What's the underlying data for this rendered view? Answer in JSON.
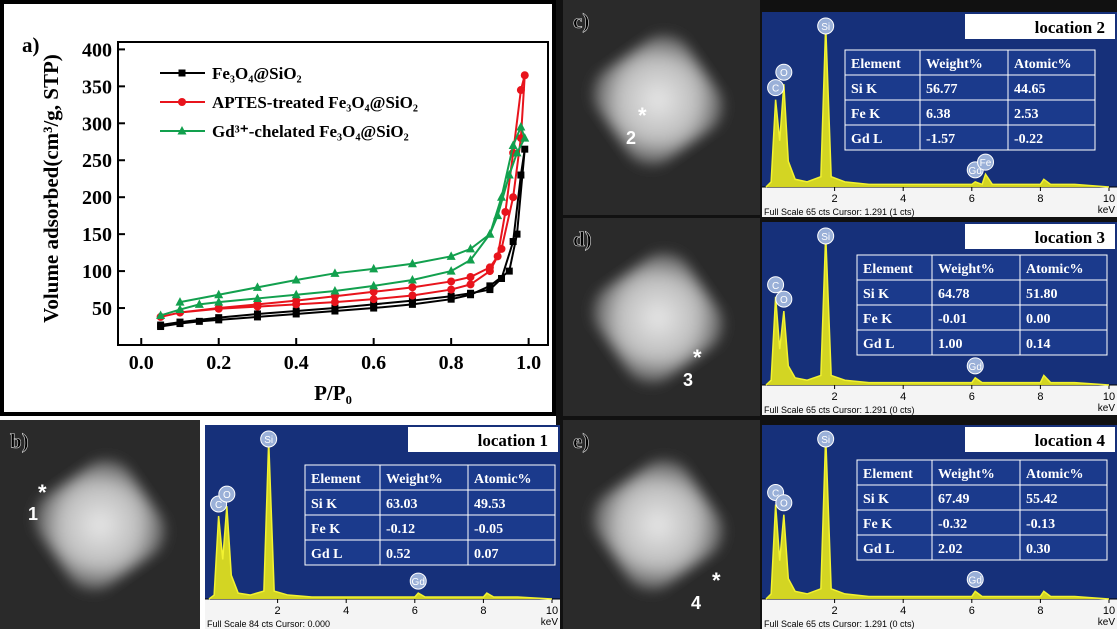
{
  "chart_data": [
    {
      "type": "line",
      "panel_label": "a)",
      "xlabel": "P/P₀",
      "ylabel": "Volume adsorbed(cm³/g, STP)",
      "xlim": [
        -0.06,
        1.05
      ],
      "xticks": [
        {
          "value": 0,
          "label": "0.0"
        },
        {
          "value": 0.2,
          "label": "0.2"
        },
        {
          "value": 0.4,
          "label": "0.4"
        },
        {
          "value": 0.6,
          "label": "0.6"
        },
        {
          "value": 0.8,
          "label": "0.8"
        },
        {
          "value": 1,
          "label": "1.0"
        }
      ],
      "ylim": [
        0,
        410
      ],
      "yticks": [
        50,
        100,
        150,
        200,
        250,
        300,
        350,
        400
      ],
      "series": [
        {
          "name": "Fe₃O₄@SiO₂",
          "color": "#000000",
          "marker": "square",
          "x": [
            0.05,
            0.1,
            0.15,
            0.2,
            0.3,
            0.4,
            0.5,
            0.6,
            0.7,
            0.8,
            0.85,
            0.9,
            0.95,
            0.97,
            0.99,
            0.98,
            0.96,
            0.93,
            0.9,
            0.85,
            0.8,
            0.7,
            0.6,
            0.5,
            0.4,
            0.3,
            0.2,
            0.1,
            0.05
          ],
          "values": [
            25,
            29,
            32,
            34,
            38,
            42,
            46,
            50,
            55,
            62,
            68,
            80,
            100,
            150,
            265,
            230,
            140,
            90,
            75,
            70,
            66,
            60,
            55,
            50,
            46,
            42,
            37,
            31,
            27
          ]
        },
        {
          "name": "APTES-treated Fe₃O₄@SiO₂",
          "color": "#e8141c",
          "marker": "circle",
          "x": [
            0.05,
            0.1,
            0.2,
            0.3,
            0.4,
            0.5,
            0.6,
            0.7,
            0.8,
            0.85,
            0.9,
            0.93,
            0.96,
            0.98,
            0.99,
            0.98,
            0.96,
            0.94,
            0.92,
            0.9,
            0.85,
            0.8,
            0.7,
            0.6,
            0.5,
            0.4,
            0.3,
            0.2,
            0.1
          ],
          "values": [
            38,
            44,
            49,
            52,
            55,
            58,
            62,
            67,
            75,
            82,
            100,
            130,
            200,
            280,
            365,
            345,
            260,
            180,
            120,
            105,
            92,
            86,
            78,
            72,
            66,
            60,
            55,
            50,
            44
          ]
        },
        {
          "name": "Gd³⁺-chelated Fe₃O₄@SiO₂",
          "color": "#12a04e",
          "marker": "triangle",
          "x": [
            0.05,
            0.1,
            0.15,
            0.2,
            0.3,
            0.4,
            0.5,
            0.6,
            0.7,
            0.8,
            0.85,
            0.9,
            0.93,
            0.96,
            0.98,
            0.99,
            0.97,
            0.95,
            0.92,
            0.9,
            0.85,
            0.8,
            0.7,
            0.6,
            0.5,
            0.4,
            0.3,
            0.2,
            0.1
          ],
          "values": [
            40,
            48,
            55,
            58,
            63,
            68,
            73,
            80,
            88,
            100,
            115,
            150,
            200,
            270,
            295,
            280,
            260,
            230,
            175,
            150,
            130,
            120,
            110,
            103,
            97,
            88,
            78,
            68,
            58
          ]
        }
      ]
    },
    {
      "type": "spectrum",
      "panel_label": "b)",
      "title": "location 1",
      "marker_symbol": "*",
      "marker_label": "1",
      "footer": "Full Scale 84 cts Cursor: 0.000",
      "x_unit": "keV",
      "xlim": [
        0,
        10
      ],
      "xticks": [
        2,
        4,
        6,
        8,
        10
      ],
      "ylim": [
        0,
        84
      ],
      "x": [
        0,
        0.15,
        0.28,
        0.4,
        0.52,
        0.65,
        0.85,
        1.2,
        1.6,
        1.74,
        1.9,
        2.3,
        3,
        4,
        5,
        6,
        6.1,
        6.3,
        6.4,
        6.6,
        7,
        7.5,
        8,
        8.1,
        8.3,
        9,
        10
      ],
      "values": [
        0,
        2,
        42,
        20,
        47,
        12,
        3,
        2,
        4,
        80,
        4,
        2,
        1,
        1,
        1,
        1,
        3,
        1,
        1,
        1,
        1,
        1,
        1,
        3,
        1,
        1,
        0
      ],
      "peak_labels": [
        {
          "text": "C",
          "x": 0.28
        },
        {
          "text": "O",
          "x": 0.52
        },
        {
          "text": "Si",
          "x": 1.74
        },
        {
          "text": "Gd",
          "x": 6.1
        }
      ],
      "table": {
        "header": [
          "Element",
          "Weight%",
          "Atomic%"
        ],
        "rows": [
          [
            "Si K",
            "63.03",
            "49.53"
          ],
          [
            "Fe K",
            "-0.12",
            "-0.05"
          ],
          [
            "Gd L",
            "0.52",
            "0.07"
          ]
        ]
      }
    },
    {
      "type": "spectrum",
      "panel_label": "c)",
      "title": "location 2",
      "marker_symbol": "*",
      "marker_label": "2",
      "footer": "Full Scale 65 cts Cursor: 1.291  (1 cts)",
      "x_unit": "keV",
      "xlim": [
        0,
        10
      ],
      "xticks": [
        2,
        4,
        6,
        8,
        10
      ],
      "ylim": [
        0,
        65
      ],
      "x": [
        0,
        0.15,
        0.28,
        0.4,
        0.52,
        0.65,
        0.85,
        1.2,
        1.6,
        1.74,
        1.9,
        2.3,
        3,
        4,
        5,
        6,
        6.1,
        6.3,
        6.4,
        6.6,
        7,
        7.5,
        8,
        8.1,
        8.3,
        9,
        10
      ],
      "values": [
        0,
        2,
        34,
        18,
        40,
        10,
        3,
        2,
        4,
        63,
        4,
        2,
        1,
        1,
        1,
        1,
        2,
        1,
        5,
        1,
        1,
        1,
        1,
        3,
        1,
        1,
        0
      ],
      "peak_labels": [
        {
          "text": "C",
          "x": 0.28
        },
        {
          "text": "O",
          "x": 0.52
        },
        {
          "text": "Si",
          "x": 1.74
        },
        {
          "text": "Gd",
          "x": 6.1
        },
        {
          "text": "Fe",
          "x": 6.4
        }
      ],
      "table": {
        "header": [
          "Element",
          "Weight%",
          "Atomic%"
        ],
        "rows": [
          [
            "Si K",
            "56.77",
            "44.65"
          ],
          [
            "Fe K",
            "6.38",
            "2.53"
          ],
          [
            "Gd L",
            "-1.57",
            "-0.22"
          ]
        ]
      }
    },
    {
      "type": "spectrum",
      "panel_label": "d)",
      "title": "location 3",
      "marker_symbol": "*",
      "marker_label": "3",
      "footer": "Full Scale 65 cts Cursor: 1.291  (0 cts)",
      "x_unit": "keV",
      "xlim": [
        0,
        10
      ],
      "xticks": [
        2,
        4,
        6,
        8,
        10
      ],
      "ylim": [
        0,
        65
      ],
      "x": [
        0,
        0.15,
        0.28,
        0.4,
        0.52,
        0.65,
        0.85,
        1.2,
        1.6,
        1.74,
        1.9,
        2.3,
        3,
        4,
        5,
        6,
        6.1,
        6.3,
        6.4,
        6.6,
        7,
        7.5,
        8,
        8.1,
        8.3,
        9,
        10
      ],
      "values": [
        0,
        2,
        37,
        15,
        31,
        8,
        3,
        2,
        4,
        63,
        4,
        2,
        1,
        1,
        1,
        1,
        3,
        1,
        1,
        1,
        1,
        1,
        1,
        4,
        1,
        1,
        0
      ],
      "peak_labels": [
        {
          "text": "C",
          "x": 0.28
        },
        {
          "text": "O",
          "x": 0.52
        },
        {
          "text": "Si",
          "x": 1.74
        },
        {
          "text": "Gd",
          "x": 6.1
        }
      ],
      "table": {
        "header": [
          "Element",
          "Weight%",
          "Atomic%"
        ],
        "rows": [
          [
            "Si K",
            "64.78",
            "51.80"
          ],
          [
            "Fe K",
            "-0.01",
            "0.00"
          ],
          [
            "Gd L",
            "1.00",
            "0.14"
          ]
        ]
      }
    },
    {
      "type": "spectrum",
      "panel_label": "e)",
      "title": "location 4",
      "marker_symbol": "*",
      "marker_label": "4",
      "footer": "Full Scale 65 cts Cursor: 1.291  (0 cts)",
      "x_unit": "keV",
      "xlim": [
        0,
        10
      ],
      "xticks": [
        2,
        4,
        6,
        8,
        10
      ],
      "ylim": [
        0,
        65
      ],
      "x": [
        0,
        0.15,
        0.28,
        0.4,
        0.52,
        0.65,
        0.85,
        1.2,
        1.6,
        1.74,
        1.9,
        2.3,
        3,
        4,
        5,
        6,
        6.1,
        6.3,
        6.4,
        6.6,
        7,
        7.5,
        8,
        8.1,
        8.3,
        9,
        10
      ],
      "values": [
        0,
        2,
        37,
        15,
        33,
        8,
        3,
        2,
        4,
        64,
        4,
        2,
        1,
        1,
        1,
        1,
        3,
        1,
        1,
        1,
        1,
        1,
        1,
        3,
        1,
        1,
        0
      ],
      "peak_labels": [
        {
          "text": "C",
          "x": 0.28
        },
        {
          "text": "O",
          "x": 0.52
        },
        {
          "text": "Si",
          "x": 1.74
        },
        {
          "text": "Gd",
          "x": 6.1
        }
      ],
      "table": {
        "header": [
          "Element",
          "Weight%",
          "Atomic%"
        ],
        "rows": [
          [
            "Si K",
            "67.49",
            "55.42"
          ],
          [
            "Fe K",
            "-0.32",
            "-0.13"
          ],
          [
            "Gd L",
            "2.02",
            "0.30"
          ]
        ]
      }
    }
  ]
}
